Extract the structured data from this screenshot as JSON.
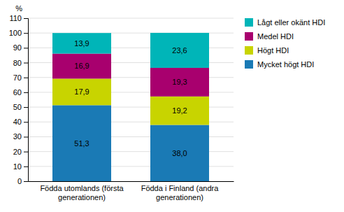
{
  "chart_data": {
    "type": "bar",
    "stacked": true,
    "data_labels": true,
    "grid": true,
    "legend": "right",
    "ylabel": "%",
    "categories": [
      "Födda utomlands (första\ngenerationen)",
      "Födda i Finland (andra\ngenerationen)"
    ],
    "series": [
      {
        "name": "Mycket högt HDI",
        "color": "#1a7ab5",
        "values": [
          51.3,
          38.0
        ],
        "value_labels": [
          "51,3",
          "38,0"
        ]
      },
      {
        "name": "Högt HDI",
        "color": "#c8d400",
        "values": [
          17.9,
          19.2
        ],
        "value_labels": [
          "17,9",
          "19,2"
        ]
      },
      {
        "name": "Medel HDI",
        "color": "#a8006e",
        "values": [
          16.9,
          19.3
        ],
        "value_labels": [
          "16,9",
          "19,3"
        ]
      },
      {
        "name": "Lågt eller okänt HDI",
        "color": "#00b5b8",
        "values": [
          13.9,
          23.6
        ],
        "value_labels": [
          "13,9",
          "23,6"
        ]
      }
    ],
    "ylim": [
      0,
      110
    ],
    "yticks": [
      0,
      10,
      20,
      30,
      40,
      50,
      60,
      70,
      80,
      90,
      100,
      110
    ]
  }
}
